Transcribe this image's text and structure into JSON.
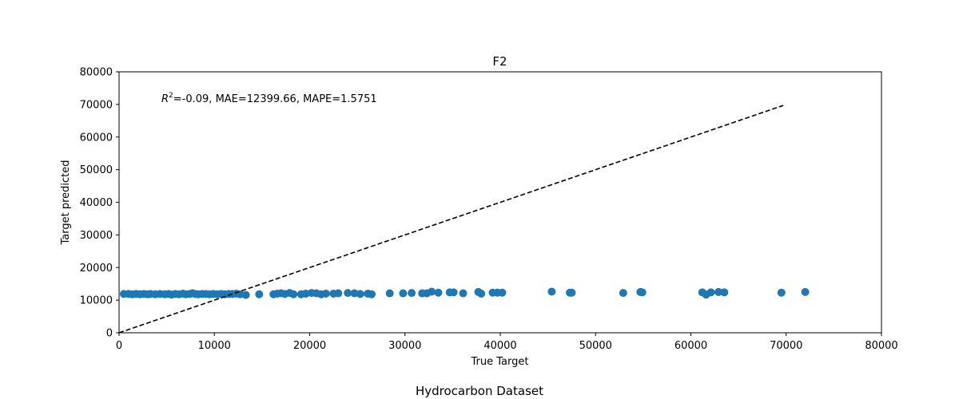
{
  "figure": {
    "suptitle": "Hydrocarbon Dataset"
  },
  "chart_data": {
    "type": "scatter",
    "title": "F2",
    "xlabel": "True Target",
    "ylabel": "Target predicted",
    "xlim": [
      0,
      80000
    ],
    "ylim": [
      0,
      80000
    ],
    "xticks": [
      0,
      10000,
      20000,
      30000,
      40000,
      50000,
      60000,
      70000,
      80000
    ],
    "yticks": [
      0,
      10000,
      20000,
      30000,
      40000,
      50000,
      60000,
      70000,
      80000
    ],
    "grid": false,
    "marker_color": "#1f77b4",
    "annotation": {
      "r2_symbol": "R",
      "r2_exponent": "2",
      "text": "=-0.09, MAE=12399.66, MAPE=1.5751"
    },
    "reference_line": {
      "x": [
        0,
        69700
      ],
      "y": [
        0,
        69700
      ],
      "style": "dashed",
      "color": "#000000"
    },
    "points": [
      [
        500,
        11900
      ],
      [
        1000,
        11900
      ],
      [
        1400,
        11800
      ],
      [
        1800,
        11900
      ],
      [
        2200,
        11800
      ],
      [
        2600,
        11900
      ],
      [
        3000,
        11800
      ],
      [
        3300,
        11900
      ],
      [
        3800,
        11800
      ],
      [
        4300,
        11900
      ],
      [
        4800,
        11800
      ],
      [
        5200,
        11900
      ],
      [
        5500,
        11700
      ],
      [
        5900,
        11900
      ],
      [
        6300,
        11800
      ],
      [
        6700,
        12000
      ],
      [
        7000,
        11800
      ],
      [
        7400,
        11900
      ],
      [
        7700,
        12100
      ],
      [
        8000,
        11900
      ],
      [
        8300,
        11800
      ],
      [
        8700,
        11900
      ],
      [
        9100,
        11900
      ],
      [
        9500,
        11800
      ],
      [
        9900,
        11900
      ],
      [
        10300,
        11800
      ],
      [
        10700,
        11900
      ],
      [
        11100,
        11800
      ],
      [
        11500,
        11900
      ],
      [
        11900,
        11900
      ],
      [
        12300,
        12000
      ],
      [
        12700,
        11800
      ],
      [
        13300,
        11600
      ],
      [
        14700,
        11800
      ],
      [
        16200,
        11800
      ],
      [
        16600,
        12000
      ],
      [
        17000,
        12100
      ],
      [
        17400,
        11900
      ],
      [
        17900,
        12200
      ],
      [
        18300,
        11800
      ],
      [
        19100,
        11800
      ],
      [
        19600,
        12000
      ],
      [
        20200,
        12200
      ],
      [
        20700,
        12100
      ],
      [
        21200,
        11800
      ],
      [
        21700,
        12000
      ],
      [
        22500,
        12000
      ],
      [
        23000,
        12100
      ],
      [
        24000,
        12200
      ],
      [
        24700,
        12100
      ],
      [
        25300,
        11900
      ],
      [
        26100,
        12000
      ],
      [
        26500,
        11800
      ],
      [
        28400,
        12100
      ],
      [
        29800,
        12100
      ],
      [
        30700,
        12200
      ],
      [
        31800,
        12100
      ],
      [
        32300,
        12100
      ],
      [
        32800,
        12600
      ],
      [
        33500,
        12300
      ],
      [
        34700,
        12400
      ],
      [
        35100,
        12400
      ],
      [
        36100,
        12100
      ],
      [
        37700,
        12500
      ],
      [
        38000,
        12000
      ],
      [
        39200,
        12300
      ],
      [
        39700,
        12300
      ],
      [
        40200,
        12300
      ],
      [
        45400,
        12600
      ],
      [
        47300,
        12300
      ],
      [
        47500,
        12300
      ],
      [
        52900,
        12200
      ],
      [
        54700,
        12500
      ],
      [
        54900,
        12400
      ],
      [
        61200,
        12400
      ],
      [
        61600,
        11700
      ],
      [
        62100,
        12400
      ],
      [
        62900,
        12500
      ],
      [
        63500,
        12400
      ],
      [
        69500,
        12300
      ],
      [
        72000,
        12500
      ]
    ]
  }
}
